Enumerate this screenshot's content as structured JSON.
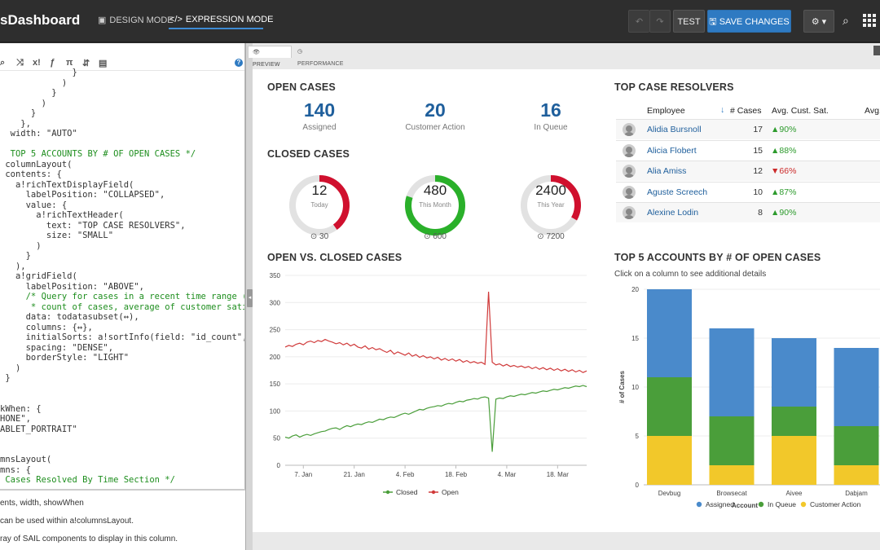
{
  "header": {
    "app_title": "sDashboard",
    "design_mode": "DESIGN MODE",
    "expression_mode": "EXPRESSION MODE",
    "undo_icon": "undo-icon",
    "redo_icon": "redo-icon",
    "test": "TEST",
    "save_changes": "SAVE CHANGES",
    "colors": {
      "bar_bg": "#2e2e2e",
      "accent": "#2e7ac2"
    }
  },
  "editor": {
    "toolbar_icons": [
      "search-icon",
      "shuffle-icon",
      "x-icon",
      "fx-icon",
      "pi-icon",
      "document-icon",
      "help-icon"
    ],
    "code_lines": [
      "              }",
      "            )",
      "          }",
      "        )",
      "      }",
      "    },",
      "  width: \"AUTO\"",
      "",
      "  TOP 5 ACCOUNTS BY # OF OPEN CASES */",
      " columnLayout(",
      " contents: {",
      "   a!richTextDisplayField(",
      "     labelPosition: \"COLLAPSED\",",
      "     value: {",
      "       a!richTextHeader(",
      "         text: \"TOP CASE RESOLVERS\",",
      "         size: \"SMALL\"",
      "       )",
      "     }",
      "   ),",
      "   a!gridField(",
      "     labelPosition: \"ABOVE\",",
      "     /* Query for cases in a recent time range (e.g",
      "      * count of cases, average of customer satisfa",
      "     data: todatasubset(↔),",
      "     columns: {↔},",
      "     initialSorts: a!sortInfo(field: \"id_count\", as",
      "     spacing: \"DENSE\",",
      "     borderStyle: \"LIGHT\"",
      "   )",
      " }",
      "",
      "",
      "kWhen: {",
      "HONE\",",
      "ABLET_PORTRAIT\"",
      "",
      "",
      "mnsLayout(",
      "mns: {",
      " Cases Resolved By Time Section */"
    ],
    "doc_lines": [
      "ents, width, showWhen",
      "can be used within a!columnsLayout.",
      "ray of SAIL components to display in this column."
    ]
  },
  "preview_tabs": {
    "preview": "PREVIEW",
    "performance": "PERFORMANCE"
  },
  "open_cases": {
    "title": "OPEN CASES",
    "items": [
      {
        "value": "140",
        "label": "Assigned"
      },
      {
        "value": "20",
        "label": "Customer Action"
      },
      {
        "value": "16",
        "label": "In Queue"
      }
    ]
  },
  "closed_cases": {
    "title": "CLOSED CASES",
    "gauges": [
      {
        "value": "12",
        "sub": "Today",
        "goal": "30",
        "fraction": 0.4,
        "color": "#d0102e"
      },
      {
        "value": "480",
        "sub": "This Month",
        "goal": "600",
        "fraction": 0.8,
        "color": "#2ab02a"
      },
      {
        "value": "2400",
        "sub": "This Year",
        "goal": "7200",
        "fraction": 0.333,
        "color": "#d0102e"
      }
    ]
  },
  "resolvers": {
    "title": "TOP CASE RESOLVERS",
    "headers": {
      "employee": "Employee",
      "cases": "# Cases",
      "sat": "Avg. Cust. Sat.",
      "avg": "Avg."
    },
    "rows": [
      {
        "name": "Alidia Bursnoll",
        "cases": "17",
        "sat": "90%",
        "trend": "up"
      },
      {
        "name": "Alicia Flobert",
        "cases": "15",
        "sat": "88%",
        "trend": "up"
      },
      {
        "name": "Alia Amiss",
        "cases": "12",
        "sat": "66%",
        "trend": "down"
      },
      {
        "name": "Aguste Screech",
        "cases": "10",
        "sat": "87%",
        "trend": "up"
      },
      {
        "name": "Alexine Lodin",
        "cases": "8",
        "sat": "90%",
        "trend": "up"
      }
    ]
  },
  "top5": {
    "title": "TOP 5 ACCOUNTS BY # OF OPEN CASES",
    "subtitle": "Click on a column to see additional details"
  },
  "chart_data": [
    {
      "type": "line",
      "title": "OPEN VS. CLOSED CASES",
      "ylim": [
        0,
        350
      ],
      "yticks": [
        0,
        50,
        100,
        150,
        200,
        250,
        300,
        350
      ],
      "xticks": [
        "7. Jan",
        "21. Jan",
        "4. Feb",
        "18. Feb",
        "4. Mar",
        "18. Mar"
      ],
      "xtick_index": [
        5,
        19,
        33,
        47,
        61,
        75
      ],
      "n_points": 84,
      "series": [
        {
          "name": "Closed",
          "color": "#4a9e3a",
          "values": [
            52,
            50,
            54,
            56,
            52,
            55,
            57,
            55,
            58,
            60,
            62,
            63,
            66,
            68,
            69,
            66,
            70,
            73,
            71,
            74,
            76,
            75,
            78,
            80,
            79,
            82,
            85,
            84,
            87,
            89,
            88,
            91,
            94,
            96,
            94,
            97,
            100,
            103,
            102,
            105,
            107,
            108,
            110,
            109,
            112,
            114,
            113,
            116,
            118,
            117,
            120,
            121,
            123,
            122,
            125,
            126,
            124,
            25,
            122,
            124,
            123,
            126,
            128,
            127,
            129,
            131,
            130,
            132,
            134,
            133,
            135,
            137,
            136,
            138,
            140,
            139,
            141,
            143,
            142,
            144,
            146,
            145,
            147,
            145
          ]
        },
        {
          "name": "Open",
          "color": "#d03a3a",
          "values": [
            218,
            221,
            219,
            223,
            225,
            222,
            227,
            229,
            226,
            230,
            228,
            232,
            229,
            227,
            224,
            226,
            222,
            225,
            220,
            223,
            218,
            216,
            220,
            214,
            217,
            213,
            215,
            211,
            208,
            212,
            205,
            209,
            206,
            203,
            207,
            201,
            204,
            199,
            202,
            198,
            200,
            196,
            199,
            194,
            197,
            193,
            196,
            192,
            195,
            190,
            193,
            189,
            191,
            188,
            190,
            186,
            320,
            190,
            185,
            187,
            183,
            186,
            182,
            184,
            181,
            183,
            180,
            182,
            178,
            181,
            177,
            180,
            176,
            179,
            175,
            178,
            174,
            177,
            173,
            176,
            172,
            175,
            171,
            174
          ]
        }
      ]
    },
    {
      "type": "bar",
      "stacked": true,
      "categories": [
        "Devbug",
        "Browsecat",
        "Aivee",
        "Dabjam"
      ],
      "xlabel": "Account",
      "ylabel": "# of Cases",
      "ylim": [
        0,
        20
      ],
      "yticks": [
        0,
        5,
        10,
        15,
        20
      ],
      "series": [
        {
          "name": "Customer Action",
          "color": "#f2c82a",
          "values": [
            5,
            2,
            5,
            2
          ]
        },
        {
          "name": "In Queue",
          "color": "#4a9e3a",
          "values": [
            6,
            5,
            3,
            4
          ]
        },
        {
          "name": "Assigned",
          "color": "#4a8acb",
          "values": [
            9,
            9,
            7,
            8
          ]
        }
      ],
      "legend_order": [
        "Assigned",
        "In Queue",
        "Customer Action"
      ]
    }
  ]
}
